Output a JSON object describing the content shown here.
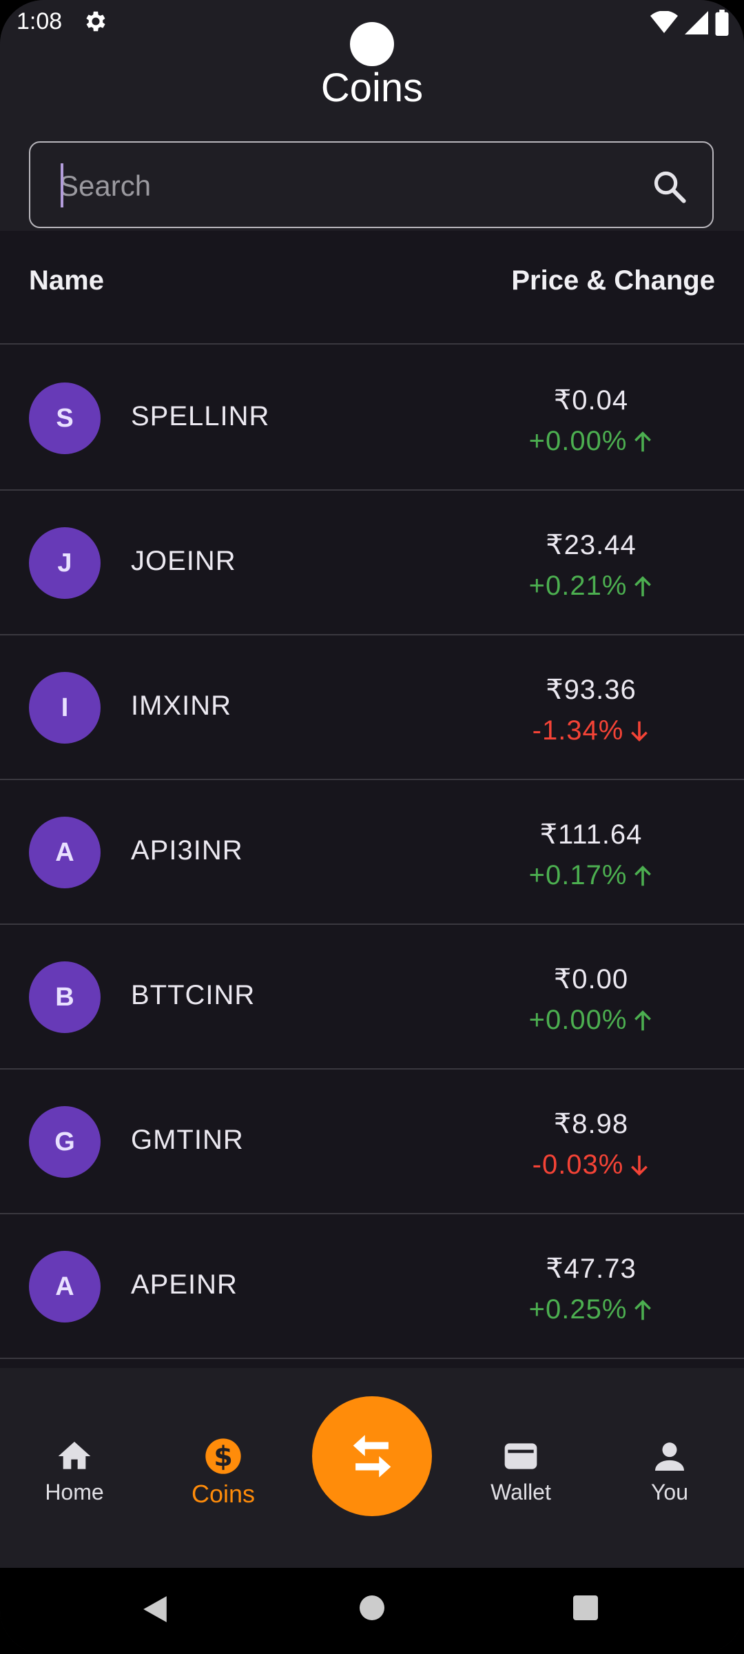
{
  "status_bar": {
    "time": "1:08"
  },
  "page": {
    "title": "Coins"
  },
  "search": {
    "placeholder": "Search",
    "value": ""
  },
  "table_header": {
    "name": "Name",
    "price_change": "Price & Change"
  },
  "coins": [
    {
      "initial": "S",
      "symbol": "SPELLINR",
      "price": "₹0.04",
      "change": "+0.00%",
      "direction": "up"
    },
    {
      "initial": "J",
      "symbol": "JOEINR",
      "price": "₹23.44",
      "change": "+0.21%",
      "direction": "up"
    },
    {
      "initial": "I",
      "symbol": "IMXINR",
      "price": "₹93.36",
      "change": "-1.34%",
      "direction": "down"
    },
    {
      "initial": "A",
      "symbol": "API3INR",
      "price": "₹111.64",
      "change": "+0.17%",
      "direction": "up"
    },
    {
      "initial": "B",
      "symbol": "BTTCINR",
      "price": "₹0.00",
      "change": "+0.00%",
      "direction": "up"
    },
    {
      "initial": "G",
      "symbol": "GMTINR",
      "price": "₹8.98",
      "change": "-0.03%",
      "direction": "down"
    },
    {
      "initial": "A",
      "symbol": "APEINR",
      "price": "₹47.73",
      "change": "+0.25%",
      "direction": "up"
    }
  ],
  "bottom_nav": {
    "items": [
      {
        "label": "Home",
        "icon": "home-icon",
        "active": false
      },
      {
        "label": "Coins",
        "icon": "dollar-coin-icon",
        "active": true
      },
      {
        "label": "Wallet",
        "icon": "wallet-icon",
        "active": false
      },
      {
        "label": "You",
        "icon": "person-icon",
        "active": false
      }
    ],
    "fab_icon": "swap-arrows-icon"
  },
  "colors": {
    "accent": "#ff8c0a",
    "avatar": "#673ab7",
    "positive": "#4caf50",
    "negative": "#f44336",
    "background": "#17151c",
    "header_bg": "#1f1e24"
  }
}
